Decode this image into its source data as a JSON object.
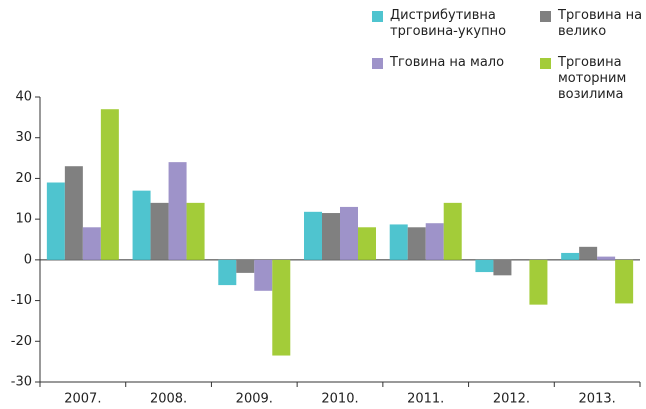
{
  "chart_data": {
    "type": "bar",
    "categories": [
      "2007.",
      "2008.",
      "2009.",
      "2010.",
      "2011.",
      "2012.",
      "2013."
    ],
    "series": [
      {
        "name": "Дистрибутивна трговина-укупно",
        "color": "#4fc4cf",
        "values": [
          19,
          17,
          -6.2,
          11.8,
          8.7,
          -3,
          1.7
        ]
      },
      {
        "name": "Трговина на велико",
        "color": "#808080",
        "values": [
          23,
          14,
          -3.2,
          11.5,
          8,
          -3.8,
          3.2
        ]
      },
      {
        "name": "Тговина на мало",
        "color": "#9e93c9",
        "values": [
          8,
          24,
          -7.6,
          13,
          9,
          null,
          0.8
        ]
      },
      {
        "name": "Трговина моторним возилима",
        "color": "#a3cc39",
        "values": [
          37,
          14,
          -23.5,
          8,
          14,
          -11,
          -10.7
        ]
      }
    ],
    "ylim": [
      -30,
      40
    ],
    "yticks": [
      -30,
      -20,
      -10,
      0,
      10,
      20,
      30,
      40
    ],
    "grid": false
  }
}
